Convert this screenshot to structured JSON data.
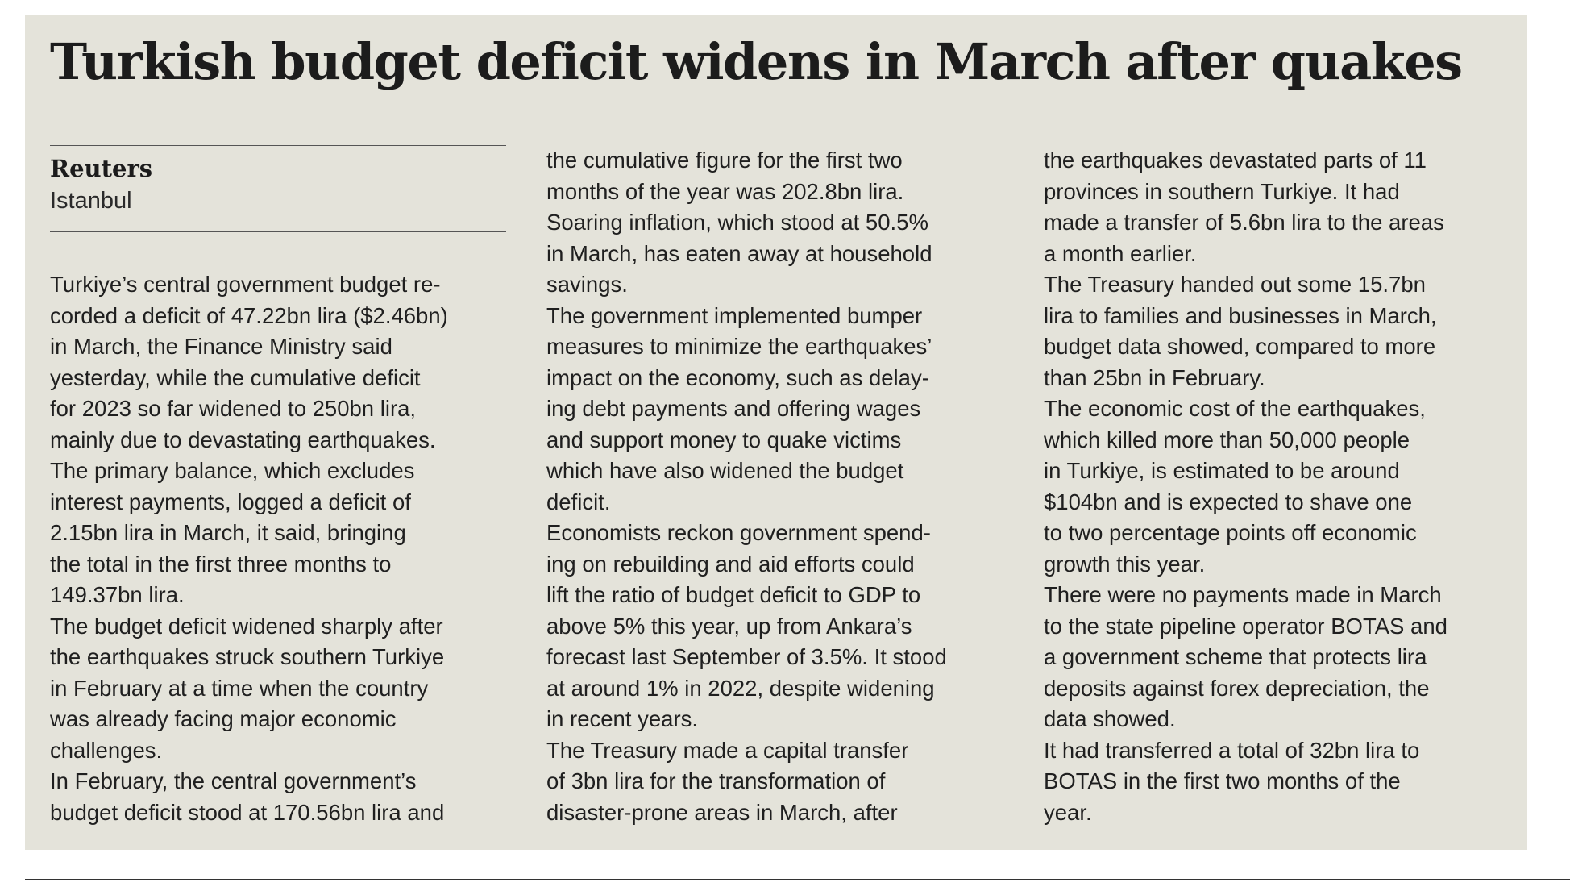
{
  "headline": "Turkish budget deficit widens in March after quakes",
  "byline": {
    "agency": "Reuters",
    "city": "Istanbul"
  },
  "columns": [
    [
      "Turkiye’s central government budget re-",
      "corded a deficit of 47.22bn lira ($2.46bn)",
      "in March, the Finance Ministry said",
      "yesterday, while the cumulative deficit",
      "for 2023 so far widened to 250bn lira,",
      "mainly due to devastating earthquakes.",
      "The primary balance, which excludes",
      "interest payments, logged a deficit of",
      "2.15bn lira in March, it said, bringing",
      "the total in the first three months to",
      "149.37bn lira.",
      "The budget deficit widened sharply after",
      "the earthquakes struck southern Turkiye",
      "in February at a time when the country",
      "was already facing major economic",
      "challenges.",
      "In February, the central government’s",
      "budget deficit stood at 170.56bn lira and"
    ],
    [
      "the cumulative figure for the first two",
      "months of the year was 202.8bn lira.",
      "Soaring inflation, which stood at 50.5%",
      "in March, has eaten away at household",
      "savings.",
      "The government implemented bumper",
      "measures to minimize the earthquakes’",
      "impact on the economy, such as delay-",
      "ing debt payments and offering wages",
      "and support money to quake victims",
      "which have also widened the budget",
      "deficit.",
      "Economists reckon government spend-",
      "ing on rebuilding and aid efforts could",
      "lift the ratio of budget deficit to GDP to",
      "above 5% this year, up from Ankara’s",
      "forecast last September of 3.5%. It stood",
      "at around 1% in 2022, despite widening",
      "in recent years.",
      "The Treasury made a capital transfer",
      "of 3bn lira for the transformation of",
      "disaster-prone areas in March, after"
    ],
    [
      "the earthquakes devastated parts of 11",
      "provinces in southern Turkiye. It had",
      "made a transfer of 5.6bn lira to the areas",
      "a month earlier.",
      "The Treasury handed out some 15.7bn",
      "lira to families and businesses in March,",
      "budget data showed, compared to more",
      "than 25bn in February.",
      "The economic cost of the earthquakes,",
      "which killed more than 50,000 people",
      "in Turkiye, is estimated to be around",
      "$104bn and is expected to shave one",
      "to two percentage points off economic",
      "growth this year.",
      "There were no payments made in March",
      "to the state pipeline operator BOTAS and",
      "a government scheme that protects lira",
      "deposits against forex depreciation, the",
      "data showed.",
      "It had transferred a total of 32bn lira to",
      "BOTAS in the first two months of the",
      "year."
    ]
  ]
}
